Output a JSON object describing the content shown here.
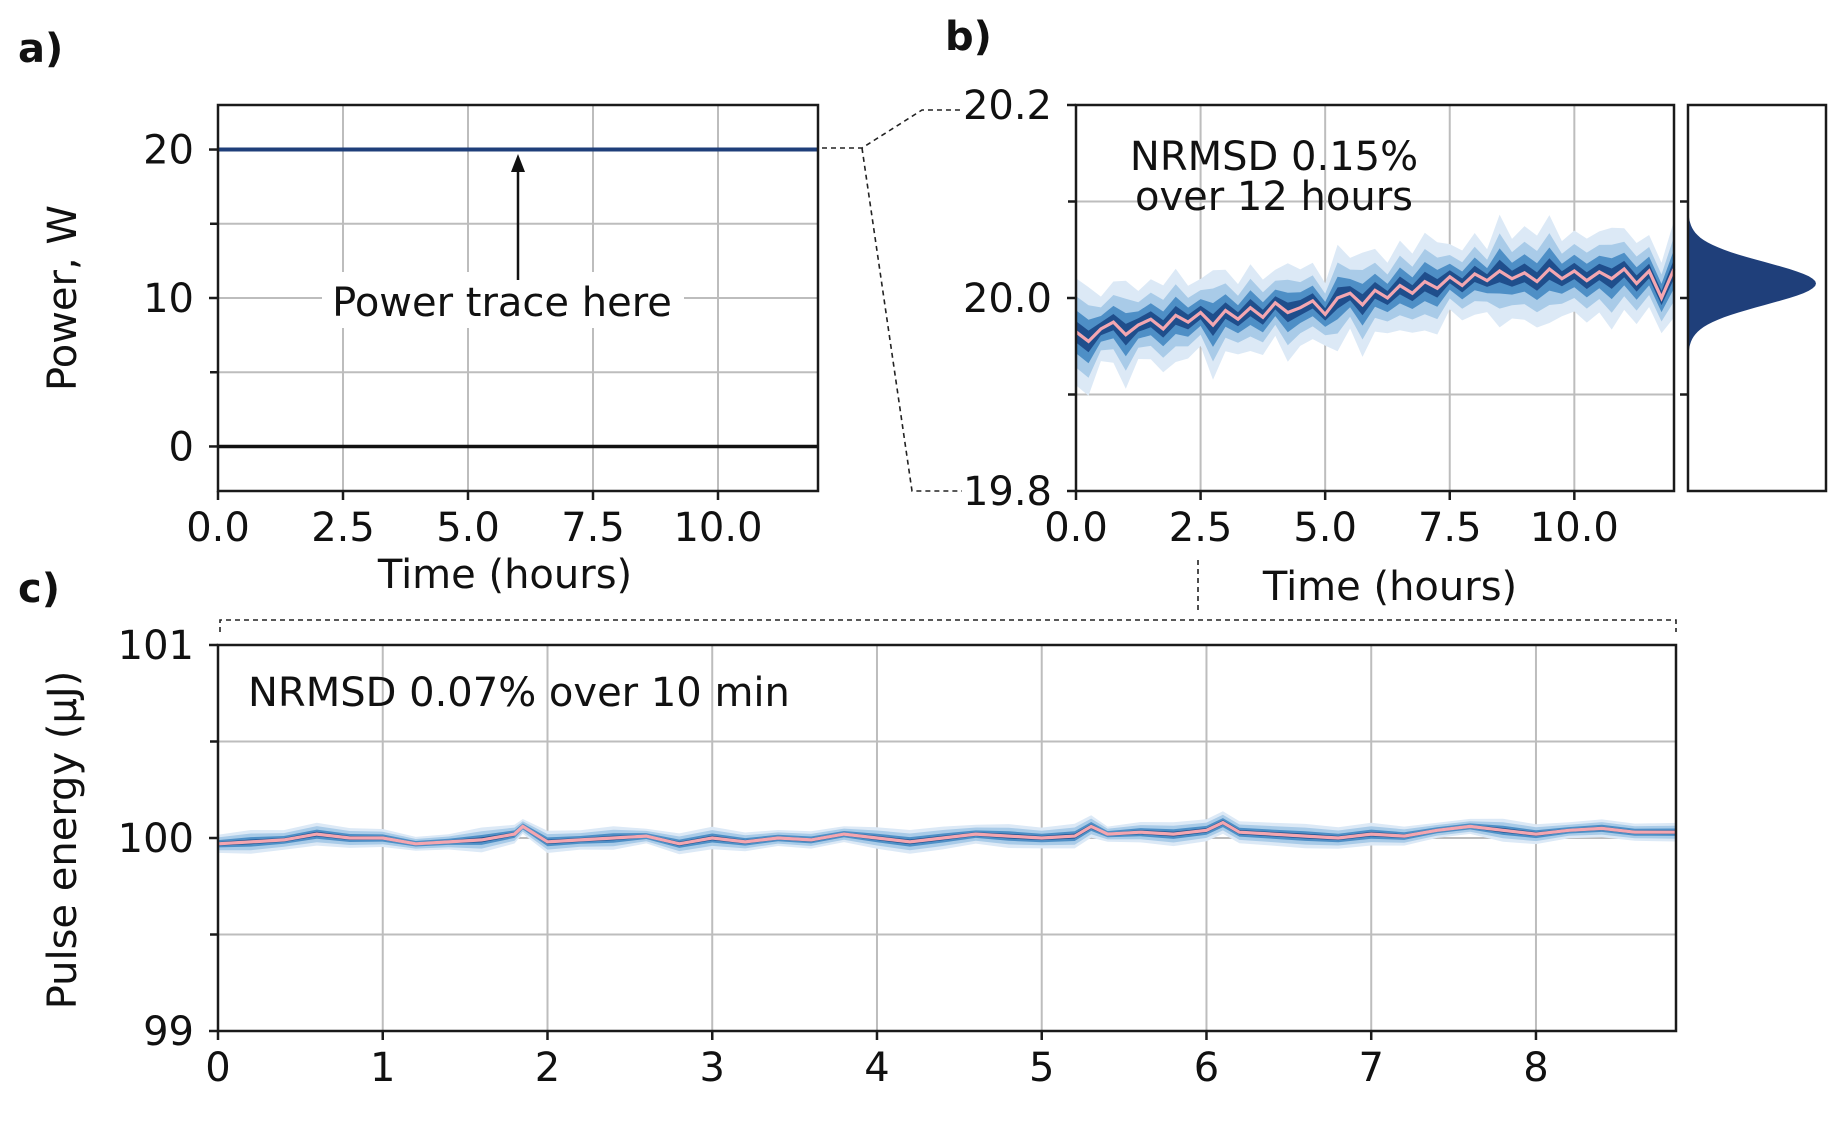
{
  "panels": {
    "a": {
      "label": "a)"
    },
    "b": {
      "label": "b)"
    },
    "c": {
      "label": "c)"
    }
  },
  "colors": {
    "trace": "#1f3f7a",
    "median": "#f4a6b0",
    "band_outer": "#dce9f6",
    "band_mid": "#a9cbe8",
    "band_inner": "#4e8fc6",
    "band_core": "#1f4e8c",
    "histogram": "#1f3f7a",
    "grid": "#bdbdbd"
  },
  "chart_data": [
    {
      "panel": "a",
      "type": "line",
      "xlabel": "Time (hours)",
      "ylabel": "Power, W",
      "xlim": [
        0,
        12
      ],
      "ylim": [
        -3,
        23
      ],
      "xticks": [
        0,
        2.5,
        5,
        7.5,
        10
      ],
      "xtick_labels": [
        "0.0",
        "2.5",
        "5.0",
        "7.5",
        "10.0"
      ],
      "yticks": [
        0,
        10,
        20
      ],
      "ytick_labels": [
        "0",
        "10",
        "20"
      ],
      "grid": true,
      "annotation": "Power trace here",
      "series": [
        {
          "x": [
            0,
            12
          ],
          "values": [
            20,
            20
          ]
        },
        {
          "x": [
            0,
            12
          ],
          "values": [
            0,
            0
          ]
        }
      ]
    },
    {
      "panel": "b",
      "type": "area",
      "xlabel": "Time (hours)",
      "ylabel": "",
      "xlim": [
        0,
        12
      ],
      "ylim": [
        19.8,
        20.2
      ],
      "xticks": [
        0,
        2.5,
        5,
        7.5,
        10
      ],
      "xtick_labels": [
        "0.0",
        "2.5",
        "5.0",
        "7.5",
        "10.0"
      ],
      "yticks": [
        19.8,
        20.0,
        20.2
      ],
      "ytick_labels": [
        "19.8",
        "20.0",
        "20.2"
      ],
      "grid": true,
      "annotation": [
        "NRMSD 0.15%",
        "over 12 hours"
      ],
      "median": {
        "x": [
          0.0,
          0.25,
          0.5,
          0.75,
          1.0,
          1.25,
          1.5,
          1.75,
          2.0,
          2.25,
          2.5,
          2.75,
          3.0,
          3.25,
          3.5,
          3.75,
          4.0,
          4.25,
          4.5,
          4.75,
          5.0,
          5.25,
          5.5,
          5.75,
          6.0,
          6.25,
          6.5,
          6.75,
          7.0,
          7.25,
          7.5,
          7.75,
          8.0,
          8.25,
          8.5,
          8.75,
          9.0,
          9.25,
          9.5,
          9.75,
          10.0,
          10.25,
          10.5,
          10.75,
          11.0,
          11.25,
          11.5,
          11.75,
          12.0
        ],
        "values": [
          19.965,
          19.955,
          19.968,
          19.975,
          19.962,
          19.972,
          19.978,
          19.968,
          19.982,
          19.975,
          19.985,
          19.972,
          19.987,
          19.978,
          19.99,
          19.98,
          19.995,
          19.985,
          19.99,
          19.997,
          19.983,
          20.0,
          20.005,
          19.993,
          20.008,
          20.0,
          20.013,
          20.005,
          20.017,
          20.01,
          20.022,
          20.013,
          20.025,
          20.018,
          20.028,
          20.02,
          20.026,
          20.017,
          20.03,
          20.02,
          20.028,
          20.018,
          20.027,
          20.02,
          20.03,
          20.015,
          20.028,
          20.0,
          20.03
        ]
      },
      "band_halfwidths": [
        0.045,
        0.03,
        0.018,
        0.009
      ],
      "histogram": {
        "center": 20.015,
        "sd": 0.022,
        "orientation": "horizontal"
      }
    },
    {
      "panel": "c",
      "type": "area",
      "xlabel": "",
      "ylabel": "Pulse energy (μJ)",
      "xlim": [
        0,
        8.85
      ],
      "ylim": [
        99,
        101
      ],
      "xticks": [
        0,
        1,
        2,
        3,
        4,
        5,
        6,
        7,
        8
      ],
      "xtick_labels": [
        "0",
        "1",
        "2",
        "3",
        "4",
        "5",
        "6",
        "7",
        "8"
      ],
      "yticks": [
        99,
        100,
        101
      ],
      "ytick_labels": [
        "99",
        "100",
        "101"
      ],
      "grid": true,
      "annotation": "NRMSD 0.07% over 10 min",
      "median": {
        "x": [
          0.0,
          0.2,
          0.4,
          0.6,
          0.8,
          1.0,
          1.2,
          1.4,
          1.6,
          1.8,
          1.85,
          2.0,
          2.2,
          2.4,
          2.6,
          2.8,
          3.0,
          3.2,
          3.4,
          3.6,
          3.8,
          4.0,
          4.2,
          4.4,
          4.6,
          4.8,
          5.0,
          5.2,
          5.3,
          5.4,
          5.6,
          5.8,
          6.0,
          6.1,
          6.2,
          6.4,
          6.6,
          6.8,
          7.0,
          7.2,
          7.4,
          7.6,
          7.8,
          8.0,
          8.2,
          8.4,
          8.6,
          8.85
        ],
        "values": [
          99.97,
          99.98,
          99.99,
          100.02,
          100.0,
          100.0,
          99.97,
          99.98,
          99.99,
          100.02,
          100.06,
          99.98,
          99.99,
          100.0,
          100.01,
          99.97,
          100.0,
          99.98,
          100.0,
          99.99,
          100.02,
          100.0,
          99.98,
          100.0,
          100.02,
          100.01,
          100.0,
          100.01,
          100.06,
          100.02,
          100.03,
          100.02,
          100.04,
          100.08,
          100.03,
          100.02,
          100.01,
          100.0,
          100.02,
          100.01,
          100.04,
          100.06,
          100.04,
          100.02,
          100.04,
          100.05,
          100.03,
          100.03
        ]
      },
      "band_halfwidths": [
        0.05,
        0.035,
        0.02,
        0.01
      ]
    }
  ]
}
